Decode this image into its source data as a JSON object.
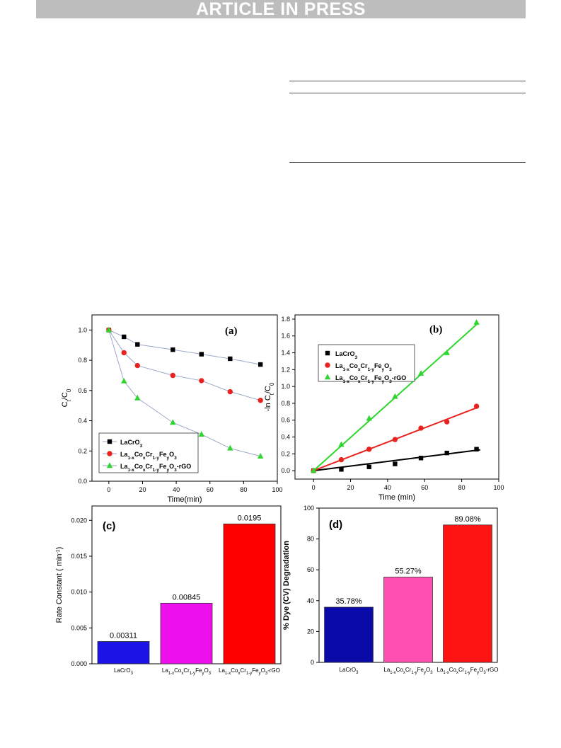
{
  "header": {
    "banner": "ARTICLE IN PRESS"
  },
  "colors": {
    "black": "#000000",
    "red": "#e8231f",
    "green": "#2fd62f",
    "blue": "#1a14e6",
    "magenta": "#ee11ee",
    "barRed": "#ff0000",
    "navy": "#0a0aa8",
    "pink": "#ff4fb0",
    "red2": "#ff1414"
  },
  "chart_data": [
    {
      "id": "a",
      "type": "line",
      "panel_label": "(a)",
      "xlabel": "Time(min)",
      "ylabel": "C_t/C_0",
      "xlim": [
        -10,
        100
      ],
      "ylim": [
        0.0,
        1.1
      ],
      "xticks": [
        "0",
        "20",
        "40",
        "60",
        "80",
        "100"
      ],
      "yticks": [
        "0.0",
        "0.2",
        "0.4",
        "0.6",
        "0.8",
        "1.0"
      ],
      "legend_position": "bottom-left",
      "series": [
        {
          "name": "LaCrO3",
          "marker": "square",
          "color": "#000000",
          "x": [
            0,
            9,
            17,
            38,
            55,
            72,
            90
          ],
          "y": [
            1.0,
            0.955,
            0.905,
            0.87,
            0.84,
            0.81,
            0.772
          ]
        },
        {
          "name": "La1-xCoxCr1-yFeyO3",
          "marker": "circle",
          "color": "#e8231f",
          "x": [
            0,
            9,
            17,
            38,
            55,
            72,
            90
          ],
          "y": [
            1.0,
            0.85,
            0.765,
            0.7,
            0.665,
            0.592,
            0.535
          ]
        },
        {
          "name": "La1-xCoxCr1-yFeyO3-rGO",
          "marker": "triangle",
          "color": "#2fd62f",
          "x": [
            0,
            9,
            17,
            38,
            55,
            72,
            90
          ],
          "y": [
            1.0,
            0.662,
            0.55,
            0.388,
            0.31,
            0.218,
            0.165
          ]
        }
      ]
    },
    {
      "id": "b",
      "type": "scatter",
      "panel_label": "(b)",
      "xlabel": "Time (min)",
      "ylabel": "-ln C_t/C_0",
      "xlim": [
        -10,
        100
      ],
      "ylim": [
        -0.1,
        1.85
      ],
      "xticks": [
        "0",
        "20",
        "40",
        "60",
        "80",
        "100"
      ],
      "yticks": [
        "0.0",
        "0.2",
        "0.4",
        "0.6",
        "0.8",
        "1.0",
        "1.2",
        "1.4",
        "1.6",
        "1.8"
      ],
      "legend_position": "top-left",
      "series": [
        {
          "name": "LaCrO3",
          "marker": "square",
          "color": "#000000",
          "x": [
            0,
            15,
            30,
            44,
            58,
            72,
            88
          ],
          "y": [
            0.0,
            0.015,
            0.045,
            0.08,
            0.15,
            0.21,
            0.255
          ],
          "fit": [
            0,
            0.0,
            90,
            0.248
          ]
        },
        {
          "name": "La1-xCoxCr1-yFeyO3",
          "marker": "circle",
          "color": "#e8231f",
          "x": [
            0,
            15,
            30,
            44,
            58,
            72,
            88
          ],
          "y": [
            0.0,
            0.13,
            0.255,
            0.37,
            0.505,
            0.58,
            0.765
          ],
          "fit": [
            0,
            0.0,
            89,
            0.755
          ]
        },
        {
          "name": "La1-xCoxCr1-yFeyO3-rGO",
          "marker": "triangle",
          "color": "#2fd62f",
          "x": [
            0,
            15,
            30,
            44,
            58,
            72,
            88
          ],
          "y": [
            0.0,
            0.31,
            0.62,
            0.88,
            1.155,
            1.4,
            1.76
          ],
          "fit": [
            0,
            0.0,
            89,
            1.755
          ]
        }
      ]
    },
    {
      "id": "c",
      "type": "bar",
      "panel_label": "(c)",
      "ylabel": "Rate Constant ( min-1)",
      "ylim": [
        0.0,
        0.022
      ],
      "yticks": [
        "0.000",
        "0.005",
        "0.010",
        "0.015",
        "0.020"
      ],
      "categories": [
        "LaCrO3",
        "La1-xCoxCr1-yFeyO3",
        "La1-xCoxCr1-yFeyO3-rGO"
      ],
      "values": [
        0.00311,
        0.00845,
        0.0195
      ],
      "value_labels": [
        "0.00311",
        "0.00845",
        "0.0195"
      ],
      "colors": [
        "#1a14e6",
        "#ee11ee",
        "#ff0000"
      ]
    },
    {
      "id": "d",
      "type": "bar",
      "panel_label": "(d)",
      "ylabel": "% Dye (CV) Degradation",
      "ylim": [
        0,
        100
      ],
      "yticks": [
        "0",
        "20",
        "40",
        "60",
        "80",
        "100"
      ],
      "categories": [
        "LaCrO3",
        "La1-xCoxCr1-yFeyO3",
        "La1-xCoxCr1-yFeyO3-rGO"
      ],
      "values": [
        35.78,
        55.27,
        89.08
      ],
      "value_labels": [
        "35.78%",
        "55.27%",
        "89.08%"
      ],
      "colors": [
        "#0a0aa8",
        "#ff4fb0",
        "#ff1414"
      ]
    }
  ]
}
